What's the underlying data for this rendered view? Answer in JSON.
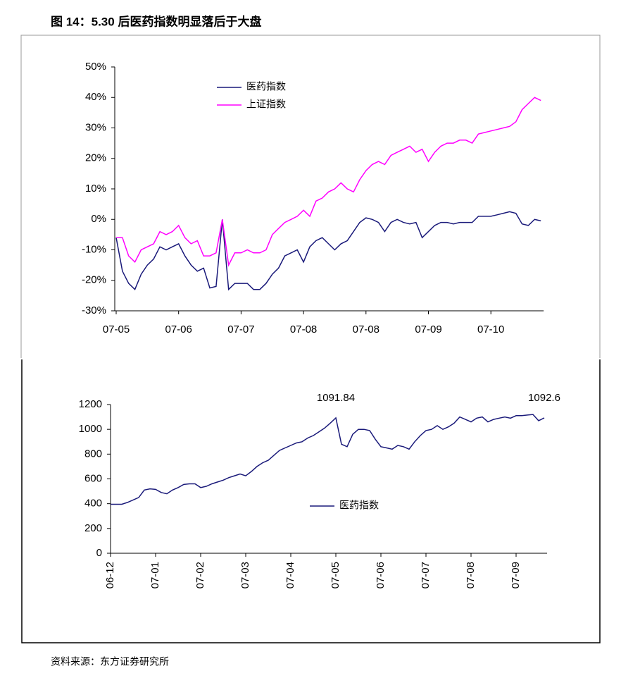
{
  "title": "图 14：5.30 后医药指数明显落后于大盘",
  "source": "资料来源：东方证券研究所",
  "chart_data": [
    {
      "type": "line",
      "categories": [
        "07-05",
        null,
        null,
        null,
        null,
        null,
        null,
        null,
        null,
        null,
        "07-06",
        null,
        null,
        null,
        null,
        null,
        null,
        null,
        null,
        null,
        "07-07",
        null,
        null,
        null,
        null,
        null,
        null,
        null,
        null,
        null,
        "07-08",
        null,
        null,
        null,
        null,
        null,
        null,
        null,
        null,
        null,
        "07-08",
        null,
        null,
        null,
        null,
        null,
        null,
        null,
        null,
        null,
        "07-09",
        null,
        null,
        null,
        null,
        null,
        null,
        null,
        null,
        null,
        "07-10",
        null,
        null,
        null,
        null,
        null,
        null,
        null,
        null
      ],
      "series": [
        {
          "name": "医药指数",
          "color": "#1a1a7a",
          "values": [
            -6,
            -17,
            -21,
            -23,
            -18,
            -15,
            -13,
            -9,
            -10,
            -9,
            -8,
            -12,
            -15,
            -17,
            -16,
            -22.5,
            -22,
            0,
            -23,
            -21,
            -21,
            -21,
            -23,
            -23,
            -21,
            -18,
            -16,
            -12,
            -11,
            -10,
            -14,
            -9,
            -7,
            -6,
            -8,
            -10,
            -8,
            -7,
            -4,
            -1,
            0.5,
            0,
            -1,
            -4,
            -1,
            0,
            -1,
            -1.5,
            -1,
            -6,
            -4,
            -2,
            -1,
            -1,
            -1.5,
            -1,
            -1,
            -1,
            1,
            1,
            1,
            1.5,
            2,
            2.5,
            2,
            -1.5,
            -2,
            0,
            -0.5
          ]
        },
        {
          "name": "上证指数",
          "color": "#ff00ff",
          "values": [
            -6,
            -6,
            -12,
            -14,
            -10,
            -9,
            -8,
            -4,
            -5,
            -4,
            -2,
            -6,
            -8,
            -7,
            -12,
            -12,
            -11,
            0,
            -15,
            -11,
            -11,
            -10,
            -11,
            -11,
            -10,
            -5,
            -3,
            -1,
            0,
            1,
            3,
            1,
            6,
            7,
            9,
            10,
            12,
            10,
            9,
            13,
            16,
            18,
            19,
            18,
            21,
            22,
            23,
            24,
            22,
            23,
            19,
            22,
            24,
            25,
            25,
            26,
            26,
            25,
            28,
            28.5,
            29,
            29.5,
            30,
            30.5,
            32,
            36,
            38,
            40,
            39
          ]
        }
      ],
      "ylim": [
        -30,
        50
      ],
      "yticks": [
        {
          "value": -30,
          "label": "-30%"
        },
        {
          "value": -20,
          "label": "-20%"
        },
        {
          "value": -10,
          "label": "-10%"
        },
        {
          "value": 0,
          "label": "0%"
        },
        {
          "value": 10,
          "label": "10%"
        },
        {
          "value": 20,
          "label": "20%"
        },
        {
          "value": 30,
          "label": "30%"
        },
        {
          "value": 40,
          "label": "40%"
        },
        {
          "value": 50,
          "label": "50%"
        }
      ],
      "grid": false,
      "legend": "top"
    },
    {
      "type": "line",
      "categories": [
        "06-12",
        null,
        null,
        null,
        null,
        null,
        null,
        null,
        "07-01",
        null,
        null,
        null,
        null,
        null,
        null,
        null,
        "07-02",
        null,
        null,
        null,
        null,
        null,
        null,
        null,
        "07-03",
        null,
        null,
        null,
        null,
        null,
        null,
        null,
        "07-04",
        null,
        null,
        null,
        null,
        null,
        null,
        null,
        "07-05",
        null,
        null,
        null,
        null,
        null,
        null,
        null,
        "07-06",
        null,
        null,
        null,
        null,
        null,
        null,
        null,
        "07-07",
        null,
        null,
        null,
        null,
        null,
        null,
        null,
        "07-08",
        null,
        null,
        null,
        null,
        null,
        null,
        null,
        "07-09",
        null,
        null,
        null,
        null,
        null
      ],
      "series": [
        {
          "name": "医药指数",
          "color": "#1a1a7a",
          "values": [
            395,
            395,
            395,
            410,
            430,
            450,
            510,
            520,
            515,
            490,
            480,
            510,
            530,
            555,
            560,
            560,
            530,
            540,
            560,
            575,
            590,
            610,
            625,
            640,
            625,
            660,
            700,
            730,
            750,
            790,
            830,
            850,
            870,
            890,
            900,
            930,
            950,
            980,
            1010,
            1050,
            1091.84,
            880,
            860,
            960,
            1000,
            1000,
            990,
            920,
            860,
            850,
            840,
            870,
            860,
            840,
            900,
            950,
            990,
            1000,
            1030,
            1000,
            1020,
            1050,
            1100,
            1080,
            1060,
            1090,
            1100,
            1060,
            1080,
            1090,
            1100,
            1090,
            1110,
            1110,
            1115,
            1120,
            1070,
            1092.6
          ],
          "value_labels": [
            null,
            null,
            null,
            null,
            null,
            null,
            null,
            null,
            null,
            null,
            null,
            null,
            null,
            null,
            null,
            null,
            null,
            null,
            null,
            null,
            null,
            null,
            null,
            null,
            null,
            null,
            null,
            null,
            null,
            null,
            null,
            null,
            null,
            null,
            null,
            null,
            null,
            null,
            null,
            null,
            "1091.84",
            null,
            null,
            null,
            null,
            null,
            null,
            null,
            null,
            null,
            null,
            null,
            null,
            null,
            null,
            null,
            null,
            null,
            null,
            null,
            null,
            null,
            null,
            null,
            null,
            null,
            null,
            null,
            null,
            null,
            null,
            null,
            null,
            null,
            null,
            null,
            null,
            "1092.6"
          ]
        }
      ],
      "ylim": [
        0,
        1200
      ],
      "yticks": [
        0,
        200,
        400,
        600,
        800,
        1000,
        1200
      ],
      "grid": false,
      "legend": "center"
    }
  ]
}
